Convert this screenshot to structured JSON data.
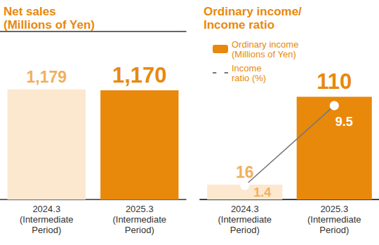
{
  "chart_data": [
    {
      "type": "bar",
      "title": "Net sales\n(Millions of Yen)",
      "categories": [
        "2024.3\n(Intermediate\nPeriod)",
        "2025.3\n(Intermediate\nPeriod)"
      ],
      "values": [
        1179,
        1170
      ],
      "value_labels": [
        "1,179",
        "1,170"
      ],
      "colors": [
        "#fbe8cf",
        "#e8890c"
      ],
      "ylim": [
        0,
        1800
      ],
      "data_labels": true,
      "tick_labels": "x",
      "grid": false
    },
    {
      "type": "bar",
      "title": "Ordinary income/\nIncome ratio",
      "categories": [
        "2024.3\n(Intermediate\nPeriod)",
        "2025.3\n(Intermediate\nPeriod)"
      ],
      "series": [
        {
          "name": "Ordinary income\n(Millions of Yen)",
          "type": "bar",
          "color": "#e8890c",
          "colors": [
            "#fbe8cf",
            "#e8890c"
          ],
          "values": [
            16,
            110
          ]
        },
        {
          "name": "Income\nratio (%)",
          "type": "line",
          "color": "#777777",
          "marker": "circle",
          "axis": "y2",
          "values": [
            1.4,
            9.5
          ]
        }
      ],
      "ylim": [
        0,
        180
      ],
      "y2lim": [
        0,
        17
      ],
      "data_labels": true,
      "tick_labels": "x",
      "legend": "upper left",
      "grid": false
    }
  ]
}
